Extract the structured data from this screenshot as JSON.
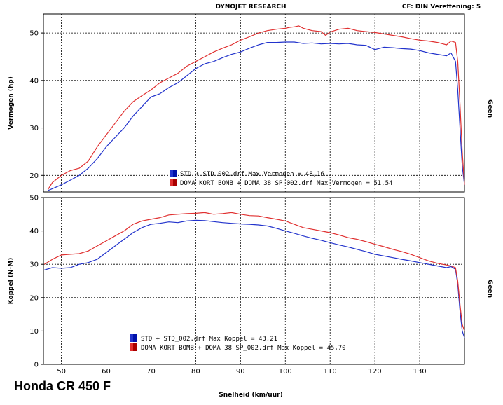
{
  "header": {
    "center": "DYNOJET RESEARCH",
    "right": "CF: DIN  Vereffening: 5"
  },
  "caption": "Honda CR 450 F",
  "xlabel": "Snelheid (km/uur)",
  "right_label": "Geen",
  "colors": {
    "std": "#2233cc",
    "mod": "#e03030",
    "grid": "#000000"
  },
  "chart_data": [
    {
      "type": "line",
      "ylabel": "Vermogen (hp)",
      "xlim": [
        46,
        140
      ],
      "ylim": [
        16.5,
        54
      ],
      "xticks": [
        50,
        60,
        70,
        80,
        90,
        100,
        110,
        120,
        130
      ],
      "yticks": [
        20,
        30,
        40,
        50
      ],
      "legend": [
        "STD + STD_002.drf Max Vermogen = 48,16",
        "DOMA KORT BOMB + DOMA 38 SP_002.drf Max Vermogen = 51,54"
      ],
      "series": [
        {
          "x": [
            47,
            48,
            50,
            52,
            54,
            56,
            58,
            60,
            62,
            64,
            66,
            68,
            70,
            72,
            74,
            76,
            78,
            80,
            82,
            84,
            86,
            88,
            90,
            92,
            94,
            96,
            98,
            100,
            102,
            104,
            106,
            108,
            110,
            112,
            114,
            116,
            118,
            120,
            122,
            124,
            126,
            128,
            130,
            132,
            134,
            136,
            137,
            138,
            138.5,
            139,
            139.5,
            140
          ],
          "y": [
            16.8,
            17.2,
            18,
            19,
            20,
            21.5,
            23.5,
            26,
            28,
            30,
            32.5,
            34.5,
            36.5,
            37.2,
            38.5,
            39.5,
            41,
            42.5,
            43.5,
            44,
            44.8,
            45.5,
            46,
            46.8,
            47.5,
            48,
            48,
            48.1,
            48.1,
            47.8,
            47.9,
            47.7,
            47.8,
            47.7,
            47.8,
            47.5,
            47.4,
            46.5,
            47,
            46.9,
            46.7,
            46.6,
            46.3,
            45.8,
            45.5,
            45.2,
            45.8,
            44,
            38,
            30,
            22,
            18
          ]
        },
        {
          "x": [
            47,
            48,
            50,
            52,
            54,
            56,
            58,
            60,
            62,
            64,
            66,
            68,
            70,
            72,
            74,
            76,
            78,
            80,
            82,
            84,
            86,
            88,
            90,
            92,
            94,
            96,
            98,
            100,
            101,
            102,
            103,
            104,
            106,
            108,
            109,
            110,
            112,
            114,
            116,
            118,
            120,
            122,
            124,
            126,
            128,
            130,
            132,
            134,
            136,
            137,
            138,
            138.5,
            139,
            139.5,
            140
          ],
          "y": [
            17,
            18.5,
            20,
            21,
            21.5,
            23,
            26,
            28.5,
            31,
            33.5,
            35.5,
            36.8,
            38,
            39.5,
            40.5,
            41.5,
            43,
            44,
            45,
            46,
            46.8,
            47.5,
            48.5,
            49.2,
            50,
            50.5,
            50.8,
            51,
            51.2,
            51.3,
            51.5,
            51,
            50.5,
            50.3,
            49.5,
            50.2,
            50.8,
            51,
            50.5,
            50.3,
            50.1,
            49.8,
            49.5,
            49.2,
            48.8,
            48.5,
            48.3,
            48,
            47.5,
            48.3,
            48,
            44,
            35,
            25,
            18
          ]
        }
      ]
    },
    {
      "type": "line",
      "ylabel": "Koppel (N-M)",
      "xlim": [
        46,
        140
      ],
      "ylim": [
        0,
        50
      ],
      "xticks": [
        50,
        60,
        70,
        80,
        90,
        100,
        110,
        120,
        130
      ],
      "yticks": [
        0,
        10,
        20,
        30,
        40,
        50
      ],
      "legend": [
        "STD + STD_002.drf Max Koppel = 43,21",
        "DOMA KORT BOMB + DOMA 38 SP_002.drf Max Koppel = 45,70"
      ],
      "series": [
        {
          "x": [
            46.2,
            48,
            50,
            52,
            54,
            56,
            58,
            60,
            62,
            64,
            66,
            68,
            70,
            72,
            74,
            76,
            78,
            80,
            82,
            84,
            86,
            88,
            90,
            92,
            94,
            96,
            98,
            100,
            102,
            104,
            106,
            108,
            110,
            112,
            114,
            116,
            118,
            120,
            122,
            124,
            126,
            128,
            130,
            132,
            134,
            136,
            137,
            138,
            138.5,
            139,
            139.5,
            140
          ],
          "y": [
            28.3,
            29,
            28.8,
            29,
            30,
            30.5,
            31.5,
            33.5,
            35.5,
            37.5,
            39.5,
            41,
            42,
            42.3,
            42.7,
            42.5,
            43,
            43.2,
            43.1,
            42.8,
            42.5,
            42.3,
            42.1,
            42,
            41.8,
            41.5,
            40.8,
            40,
            39.3,
            38.5,
            37.8,
            37.2,
            36.5,
            35.8,
            35.2,
            34.5,
            33.8,
            33,
            32.5,
            32,
            31.5,
            31,
            30.5,
            30,
            29.5,
            29,
            29.3,
            28.5,
            24,
            16,
            10,
            8
          ]
        },
        {
          "x": [
            46.2,
            48,
            50,
            52,
            54,
            56,
            58,
            60,
            62,
            64,
            66,
            68,
            70,
            72,
            74,
            76,
            78,
            80,
            82,
            84,
            86,
            88,
            90,
            92,
            94,
            96,
            98,
            100,
            102,
            104,
            106,
            108,
            110,
            112,
            114,
            116,
            118,
            120,
            122,
            124,
            126,
            128,
            130,
            132,
            134,
            136,
            137,
            138,
            138.5,
            139,
            139.5,
            140
          ],
          "y": [
            30,
            31.5,
            32.8,
            33,
            33.2,
            34,
            35.5,
            37,
            38.5,
            40,
            42,
            43,
            43.5,
            44,
            44.8,
            45,
            45.2,
            45.3,
            45.5,
            45,
            45.2,
            45.5,
            45,
            44.6,
            44.5,
            44,
            43.5,
            43,
            42,
            41,
            40.5,
            40,
            39.5,
            38.8,
            38,
            37.5,
            36.8,
            36,
            35.3,
            34.5,
            33.8,
            33,
            32,
            31,
            30.3,
            29.8,
            29.5,
            29,
            25,
            18,
            12,
            10
          ]
        }
      ]
    }
  ]
}
